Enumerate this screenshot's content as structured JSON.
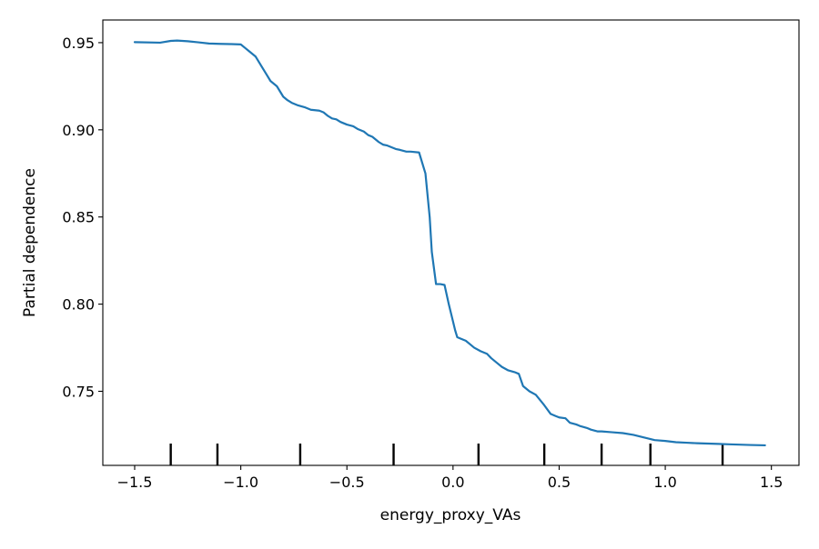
{
  "chart_data": {
    "type": "line",
    "title": "",
    "xlabel": "energy_proxy_VAs",
    "ylabel": "Partial dependence",
    "xlim": [
      -1.65,
      1.63
    ],
    "ylim": [
      0.7075,
      0.963
    ],
    "xticks": [
      -1.5,
      -1.0,
      -0.5,
      0.0,
      0.5,
      1.0,
      1.5
    ],
    "xtick_labels": [
      "−1.5",
      "−1.0",
      "−0.5",
      "0.0",
      "0.5",
      "1.0",
      "1.5"
    ],
    "yticks": [
      0.75,
      0.8,
      0.85,
      0.9,
      0.95
    ],
    "ytick_labels": [
      "0.75",
      "0.80",
      "0.85",
      "0.90",
      "0.95"
    ],
    "grid": false,
    "line_color": "#1f77b4",
    "rug_color": "#000000",
    "rug_positions": [
      -1.33,
      -1.11,
      -0.72,
      -0.28,
      0.12,
      0.43,
      0.7,
      0.93,
      1.27
    ],
    "series": [
      {
        "x": [
          -1.5,
          -1.38,
          -1.33,
          -1.3,
          -1.25,
          -1.2,
          -1.15,
          -1.1,
          -1.05,
          -1.0,
          -0.98,
          -0.96,
          -0.93,
          -0.9,
          -0.88,
          -0.86,
          -0.83,
          -0.8,
          -0.78,
          -0.76,
          -0.73,
          -0.7,
          -0.67,
          -0.63,
          -0.61,
          -0.59,
          -0.57,
          -0.55,
          -0.53,
          -0.5,
          -0.47,
          -0.45,
          -0.42,
          -0.4,
          -0.38,
          -0.35,
          -0.33,
          -0.31,
          -0.29,
          -0.27,
          -0.25,
          -0.22,
          -0.2,
          -0.16,
          -0.13,
          -0.11,
          -0.1,
          -0.08,
          -0.06,
          -0.04,
          -0.02,
          0.0,
          0.01,
          0.02,
          0.03,
          0.06,
          0.08,
          0.1,
          0.13,
          0.16,
          0.18,
          0.21,
          0.23,
          0.26,
          0.29,
          0.31,
          0.33,
          0.36,
          0.39,
          0.41,
          0.43,
          0.46,
          0.48,
          0.5,
          0.53,
          0.55,
          0.58,
          0.6,
          0.63,
          0.65,
          0.68,
          0.7,
          0.75,
          0.8,
          0.85,
          0.9,
          0.95,
          1.0,
          1.05,
          1.1,
          1.15,
          1.2,
          1.25,
          1.3,
          1.35,
          1.4,
          1.47
        ],
        "y": [
          0.9503,
          0.95,
          0.951,
          0.9512,
          0.9508,
          0.9502,
          0.9495,
          0.9493,
          0.9492,
          0.949,
          0.947,
          0.945,
          0.942,
          0.936,
          0.932,
          0.928,
          0.925,
          0.919,
          0.917,
          0.9155,
          0.914,
          0.913,
          0.9115,
          0.911,
          0.91,
          0.908,
          0.9065,
          0.906,
          0.9045,
          0.903,
          0.902,
          0.9005,
          0.899,
          0.897,
          0.896,
          0.893,
          0.8915,
          0.891,
          0.89,
          0.889,
          0.8885,
          0.8875,
          0.8875,
          0.887,
          0.875,
          0.85,
          0.83,
          0.8115,
          0.8115,
          0.811,
          0.8,
          0.79,
          0.785,
          0.781,
          0.7805,
          0.779,
          0.777,
          0.775,
          0.773,
          0.7715,
          0.769,
          0.766,
          0.764,
          0.762,
          0.761,
          0.76,
          0.753,
          0.75,
          0.748,
          0.745,
          0.742,
          0.737,
          0.736,
          0.735,
          0.7345,
          0.732,
          0.731,
          0.73,
          0.729,
          0.728,
          0.727,
          0.727,
          0.7265,
          0.726,
          0.725,
          0.7235,
          0.722,
          0.7215,
          0.7208,
          0.7205,
          0.7202,
          0.72,
          0.7198,
          0.7196,
          0.7194,
          0.7192,
          0.719
        ]
      }
    ]
  }
}
